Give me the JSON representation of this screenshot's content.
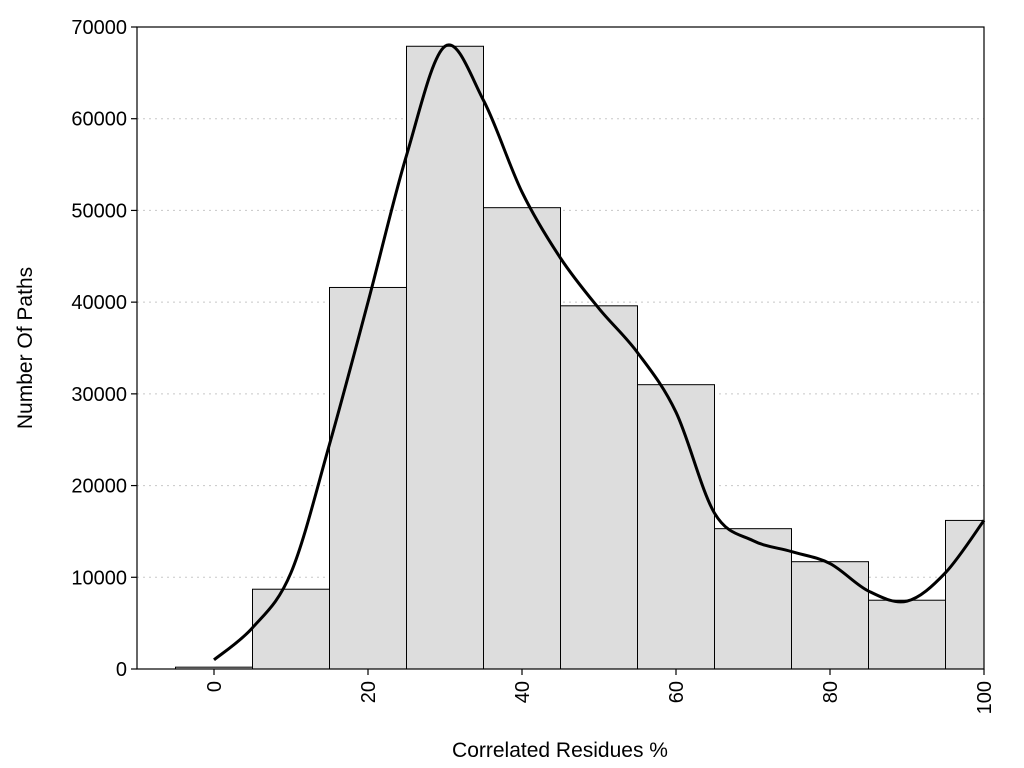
{
  "chart_data": {
    "type": "bar",
    "title": "",
    "xlabel": "Correlated Residues %",
    "ylabel": "Number Of Paths",
    "x": [
      0,
      10,
      20,
      30,
      40,
      50,
      60,
      70,
      80,
      90,
      100
    ],
    "values": [
      200,
      8700,
      41600,
      67900,
      50300,
      39600,
      31000,
      15300,
      11700,
      7500,
      16200
    ],
    "bin_width": 10,
    "xlim": [
      -10,
      100
    ],
    "ylim": [
      0,
      70000
    ],
    "xticks": [
      0,
      20,
      40,
      60,
      80,
      100
    ],
    "xtick_labels": [
      "0",
      "20",
      "40",
      "60",
      "80",
      "100"
    ],
    "yticks": [
      0,
      10000,
      20000,
      30000,
      40000,
      50000,
      60000,
      70000
    ],
    "ytick_labels": [
      "0",
      "10000",
      "20000",
      "30000",
      "40000",
      "50000",
      "60000",
      "70000"
    ],
    "grid": "horizontal dotted",
    "legend": "none",
    "bar_color": "#dddddd",
    "curve": {
      "x": [
        0,
        5,
        10,
        15,
        20,
        25,
        30,
        35,
        40,
        45,
        50,
        55,
        60,
        65,
        70,
        75,
        80,
        85,
        90,
        95,
        100
      ],
      "y": [
        1000,
        4500,
        10500,
        24500,
        40000,
        56000,
        67900,
        62000,
        52000,
        44800,
        39300,
        34500,
        28000,
        17000,
        14000,
        12800,
        11500,
        8500,
        7400,
        10500,
        16200
      ]
    }
  }
}
